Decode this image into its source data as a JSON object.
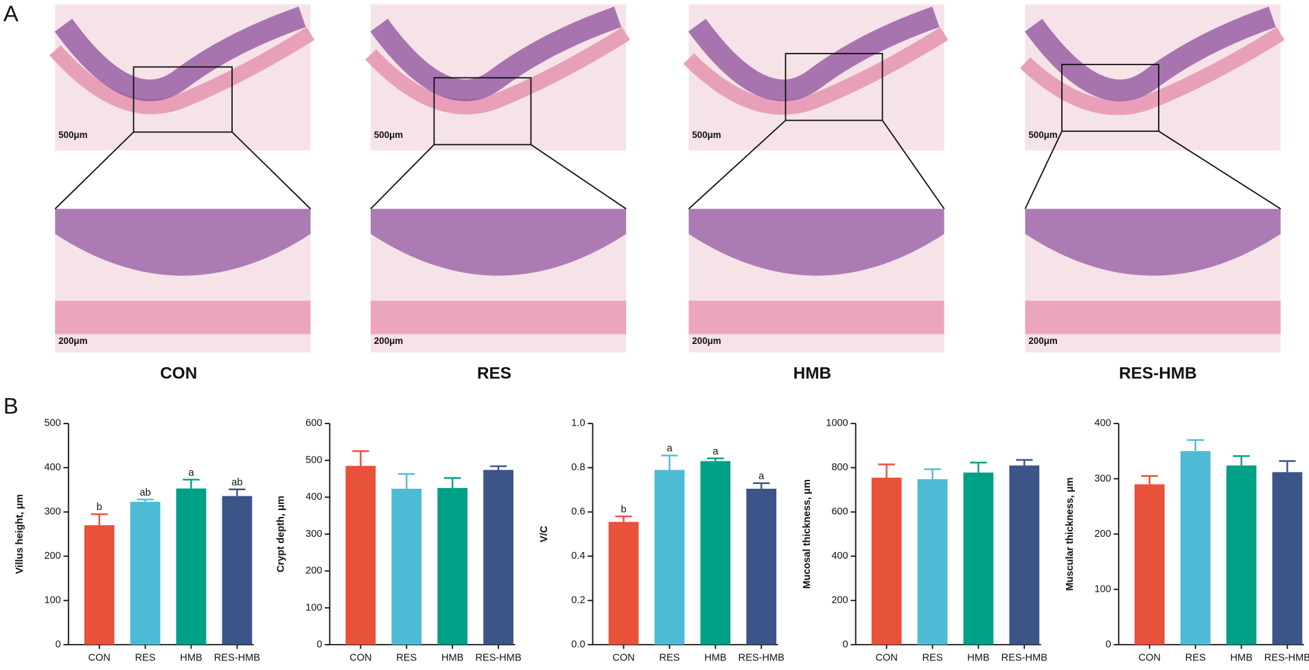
{
  "panel_labels": [
    "A",
    "B"
  ],
  "images": [
    {
      "group": "CON",
      "scale_top": "500μm",
      "scale_bottom": "200μm"
    },
    {
      "group": "RES",
      "scale_top": "500μm",
      "scale_bottom": "200μm"
    },
    {
      "group": "HMB",
      "scale_top": "500μm",
      "scale_bottom": "200μm"
    },
    {
      "group": "RES-HMB",
      "scale_top": "500μm",
      "scale_bottom": "200μm"
    }
  ],
  "chart_data": [
    {
      "type": "bar",
      "ylabel": "Villus height, μm",
      "categories": [
        "CON",
        "RES",
        "HMB",
        "RES-HMB"
      ],
      "values": [
        270,
        323,
        353,
        336
      ],
      "errors": [
        25,
        5,
        20,
        15
      ],
      "annotations": [
        "b",
        "ab",
        "a",
        "ab"
      ],
      "colors": [
        "#e8513a",
        "#4dbbd5",
        "#00a087",
        "#3c5488"
      ],
      "ylim": [
        0,
        500
      ],
      "yticks": [
        0,
        100,
        200,
        300,
        400,
        500
      ]
    },
    {
      "type": "bar",
      "ylabel": "Crypt depth, μm",
      "categories": [
        "CON",
        "RES",
        "HMB",
        "RES-HMB"
      ],
      "values": [
        485,
        423,
        425,
        474
      ],
      "errors": [
        40,
        40,
        27,
        10
      ],
      "colors": [
        "#e8513a",
        "#4dbbd5",
        "#00a087",
        "#3c5488"
      ],
      "ylim": [
        0,
        600
      ],
      "yticks": [
        0,
        100,
        200,
        300,
        400,
        500,
        600
      ]
    },
    {
      "type": "bar",
      "ylabel": "V/C",
      "categories": [
        "CON",
        "RES",
        "HMB",
        "RES-HMB"
      ],
      "values": [
        0.555,
        0.79,
        0.83,
        0.705
      ],
      "errors": [
        0.025,
        0.065,
        0.012,
        0.025
      ],
      "annotations": [
        "b",
        "a",
        "a",
        "a"
      ],
      "colors": [
        "#e8513a",
        "#4dbbd5",
        "#00a087",
        "#3c5488"
      ],
      "ylim": [
        0,
        1
      ],
      "yticks": [
        {
          "value": 0,
          "label": "0.0"
        },
        0.2,
        0.4,
        0.6,
        0.8,
        {
          "value": 1,
          "label": "1.0"
        }
      ]
    },
    {
      "type": "bar",
      "ylabel": "Mucosal thickness, μm",
      "categories": [
        "CON",
        "RES",
        "HMB",
        "RES-HMB"
      ],
      "values": [
        755,
        748,
        778,
        810
      ],
      "errors": [
        60,
        45,
        45,
        25
      ],
      "colors": [
        "#e8513a",
        "#4dbbd5",
        "#00a087",
        "#3c5488"
      ],
      "ylim": [
        0,
        1000
      ],
      "yticks": [
        0,
        200,
        400,
        600,
        800,
        1000
      ]
    },
    {
      "type": "bar",
      "ylabel": "Muscular thickness, μm",
      "categories": [
        "CON",
        "RES",
        "HMB",
        "RES-HMB"
      ],
      "values": [
        290,
        350,
        324,
        312
      ],
      "errors": [
        15,
        20,
        17,
        20
      ],
      "colors": [
        "#e8513a",
        "#4dbbd5",
        "#00a087",
        "#3c5488"
      ],
      "ylim": [
        0,
        400
      ],
      "yticks": [
        0,
        100,
        200,
        300,
        400
      ]
    }
  ]
}
